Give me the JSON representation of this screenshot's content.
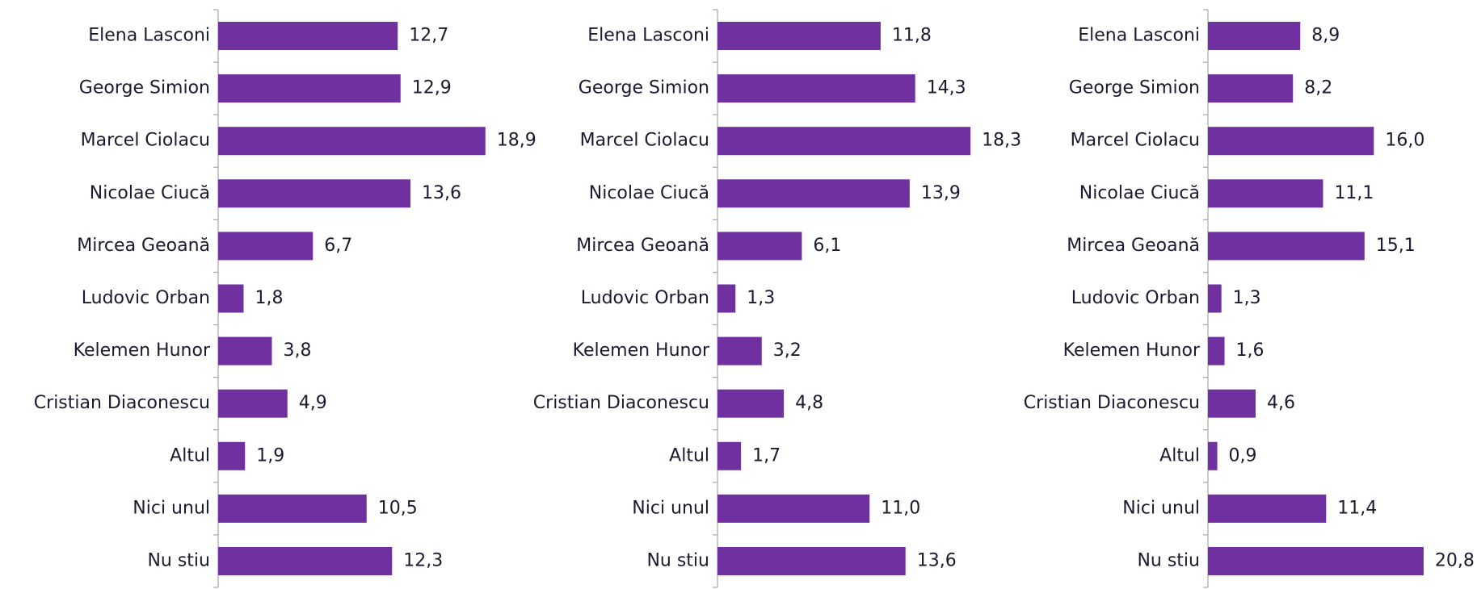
{
  "chart_data": [
    {
      "type": "bar",
      "orientation": "horizontal",
      "color": "#7030a0",
      "xlim": [
        0,
        22
      ],
      "categories": [
        "Elena Lasconi",
        "George Simion",
        "Marcel Ciolacu",
        "Nicolae Ciucă",
        "Mircea Geoană",
        "Ludovic Orban",
        "Kelemen Hunor",
        "Cristian Diaconescu",
        "Altul",
        "Nici unul",
        "Nu stiu"
      ],
      "values": [
        12.7,
        12.9,
        18.9,
        13.6,
        6.7,
        1.8,
        3.8,
        4.9,
        1.9,
        10.5,
        12.3
      ],
      "value_labels": [
        "12,7",
        "12,9",
        "18,9",
        "13,6",
        "6,7",
        "1,8",
        "3,8",
        "4,9",
        "1,9",
        "10,5",
        "12,3"
      ]
    },
    {
      "type": "bar",
      "orientation": "horizontal",
      "color": "#7030a0",
      "xlim": [
        0,
        22.5
      ],
      "categories": [
        "Elena Lasconi",
        "George Simion",
        "Marcel Ciolacu",
        "Nicolae Ciucă",
        "Mircea Geoană",
        "Ludovic Orban",
        "Kelemen Hunor",
        "Cristian Diaconescu",
        "Altul",
        "Nici unul",
        "Nu stiu"
      ],
      "values": [
        11.8,
        14.3,
        18.3,
        13.9,
        6.1,
        1.3,
        3.2,
        4.8,
        1.7,
        11.0,
        13.6
      ],
      "value_labels": [
        "11,8",
        "14,3",
        "18,3",
        "13,9",
        "6,1",
        "1,3",
        "3,2",
        "4,8",
        "1,7",
        "11,0",
        "13,6"
      ]
    },
    {
      "type": "bar",
      "orientation": "horizontal",
      "color": "#7030a0",
      "xlim": [
        0,
        30
      ],
      "categories": [
        "Elena Lasconi",
        "George Simion",
        "Marcel Ciolacu",
        "Nicolae Ciucă",
        "Mircea Geoană",
        "Ludovic Orban",
        "Kelemen Hunor",
        "Cristian Diaconescu",
        "Altul",
        "Nici unul",
        "Nu stiu"
      ],
      "values": [
        8.9,
        8.2,
        16.0,
        11.1,
        15.1,
        1.3,
        1.6,
        4.6,
        0.9,
        11.4,
        20.8
      ],
      "value_labels": [
        "8,9",
        "8,2",
        "16,0",
        "11,1",
        "15,1",
        "1,3",
        "1,6",
        "4,6",
        "0,9",
        "11,4",
        "20,8"
      ]
    }
  ]
}
